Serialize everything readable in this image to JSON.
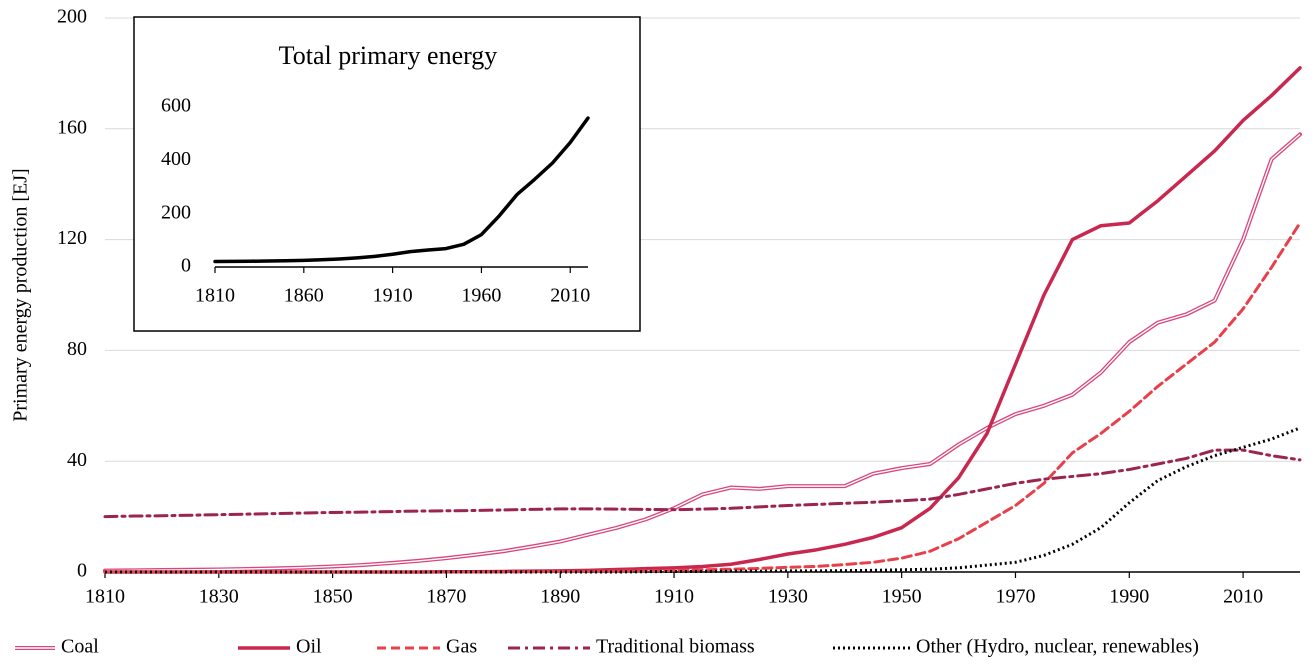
{
  "chart_data": [
    {
      "type": "line",
      "y_label": "Primary energy production [EJ]",
      "x": [
        1810,
        1815,
        1820,
        1825,
        1830,
        1835,
        1840,
        1845,
        1850,
        1855,
        1860,
        1865,
        1870,
        1875,
        1880,
        1885,
        1890,
        1895,
        1900,
        1905,
        1910,
        1915,
        1920,
        1925,
        1930,
        1935,
        1940,
        1945,
        1950,
        1955,
        1960,
        1965,
        1970,
        1975,
        1980,
        1985,
        1990,
        1995,
        2000,
        2005,
        2010,
        2015,
        2020
      ],
      "xlim": [
        1810,
        2020
      ],
      "xticks": [
        1810,
        1830,
        1850,
        1870,
        1890,
        1910,
        1930,
        1950,
        1970,
        1990,
        2010
      ],
      "ylim": [
        0,
        200
      ],
      "yticks": [
        0,
        40,
        80,
        120,
        160,
        200
      ],
      "grid": true,
      "legend": "bottom",
      "series": [
        {
          "name": "Coal",
          "color": "#d9467d",
          "style": "double",
          "values": [
            0.5,
            0.6,
            0.7,
            0.8,
            0.9,
            1.1,
            1.3,
            1.6,
            2,
            2.5,
            3.2,
            4,
            5,
            6.2,
            7.5,
            9.2,
            11,
            13.5,
            16,
            19,
            23,
            28,
            30.5,
            30,
            31,
            31,
            31,
            35.5,
            37.5,
            39,
            46,
            52,
            57,
            60,
            64,
            72,
            83,
            90,
            93,
            98,
            120,
            149,
            158
          ]
        },
        {
          "name": "Oil",
          "color": "#c8284f",
          "style": "solid",
          "values": [
            0,
            0,
            0,
            0,
            0,
            0,
            0,
            0,
            0,
            0,
            0,
            0,
            0.1,
            0.1,
            0.2,
            0.3,
            0.4,
            0.6,
            0.9,
            1.2,
            1.5,
            2,
            2.8,
            4.5,
            6.5,
            8,
            10,
            12.5,
            16,
            23,
            34,
            50,
            75,
            100,
            120,
            125,
            126,
            134,
            143,
            152,
            163,
            172,
            182
          ]
        },
        {
          "name": "Gas",
          "color": "#e8404a",
          "style": "dashed",
          "values": [
            0,
            0,
            0,
            0,
            0,
            0,
            0,
            0,
            0,
            0,
            0,
            0,
            0,
            0,
            0,
            0.1,
            0.2,
            0.2,
            0.3,
            0.4,
            0.6,
            0.8,
            1,
            1.3,
            1.7,
            2,
            2.7,
            3.5,
            5,
            7.5,
            12,
            18,
            24,
            32,
            43,
            50,
            58,
            67,
            75,
            83,
            95,
            110,
            126
          ]
        },
        {
          "name": "Traditional biomass",
          "color": "#9b2450",
          "style": "dashdot",
          "values": [
            20,
            20.2,
            20.3,
            20.5,
            20.7,
            20.9,
            21.1,
            21.3,
            21.5,
            21.6,
            21.8,
            22,
            22.1,
            22.2,
            22.4,
            22.6,
            22.8,
            22.8,
            22.7,
            22.6,
            22.5,
            22.7,
            23,
            23.5,
            24,
            24.4,
            24.8,
            25.2,
            25.7,
            26.3,
            28,
            30,
            32,
            33.5,
            34.5,
            35.5,
            37,
            39,
            41,
            44,
            44,
            42,
            40.5
          ]
        },
        {
          "name": "Other (Hydro, nuclear, renewables)",
          "color": "#000000",
          "style": "dotted",
          "values": [
            0,
            0,
            0,
            0,
            0,
            0,
            0,
            0,
            0,
            0,
            0,
            0,
            0,
            0,
            0,
            0,
            0,
            0,
            0,
            0.1,
            0.2,
            0.2,
            0.3,
            0.3,
            0.4,
            0.4,
            0.5,
            0.6,
            0.8,
            1,
            1.5,
            2.5,
            3.5,
            6,
            10,
            16,
            25,
            33,
            38,
            42,
            45,
            48,
            52
          ]
        }
      ]
    },
    {
      "type": "line",
      "title": "Total primary energy",
      "x": [
        1810,
        1820,
        1830,
        1840,
        1850,
        1860,
        1870,
        1880,
        1890,
        1900,
        1910,
        1920,
        1930,
        1940,
        1950,
        1960,
        1970,
        1980,
        1990,
        2000,
        2010,
        2020
      ],
      "xlim": [
        1810,
        2020
      ],
      "xticks": [
        1810,
        1860,
        1910,
        1960,
        2010
      ],
      "ylim": [
        0,
        600
      ],
      "yticks": [
        0,
        200,
        400,
        600
      ],
      "series": [
        {
          "color": "#000000",
          "style": "solid",
          "values": [
            20.5,
            21,
            21.6,
            22.4,
            23.5,
            25,
            27.2,
            30.1,
            34.4,
            39.9,
            47.8,
            57.6,
            63.6,
            69,
            85,
            121.5,
            191.5,
            271.5,
            329,
            390,
            467,
            558.5
          ]
        }
      ]
    }
  ]
}
